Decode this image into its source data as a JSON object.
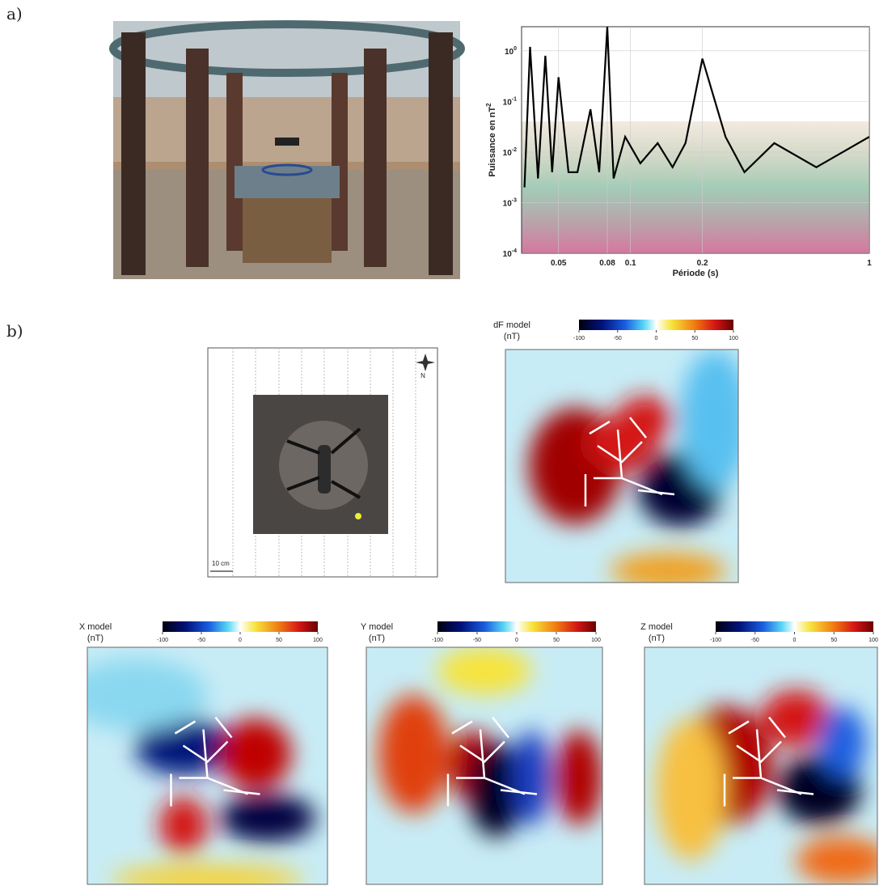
{
  "panels": [
    {
      "label": "a)"
    },
    {
      "label": "b)"
    }
  ],
  "spectrum": {
    "type": "line",
    "ylabel": "Puissance en nT",
    "ylabel_exponent": "2",
    "xlabel": "Période (s)",
    "log_x": true,
    "log_y": true,
    "grid": true,
    "xlim": [
      0.035,
      1
    ],
    "ylim": [
      0.0001,
      3
    ],
    "xticks": [
      0.05,
      0.08,
      0.1,
      0.2,
      1
    ],
    "yticks": [
      {
        "value": 1,
        "label": "10",
        "exponent": "0"
      },
      {
        "value": 0.1,
        "label": "10",
        "exponent": "-1"
      },
      {
        "value": 0.01,
        "label": "10",
        "exponent": "-2"
      },
      {
        "value": 0.001,
        "label": "10",
        "exponent": "-3"
      },
      {
        "value": 0.0001,
        "label": "10",
        "exponent": "-4"
      }
    ],
    "x": [
      0.036,
      0.038,
      0.041,
      0.044,
      0.047,
      0.05,
      0.055,
      0.06,
      0.068,
      0.074,
      0.08,
      0.085,
      0.095,
      0.11,
      0.13,
      0.15,
      0.17,
      0.2,
      0.25,
      0.3,
      0.4,
      0.6,
      1
    ],
    "series": [
      {
        "color": "#000000",
        "values": [
          0.002,
          1.2,
          0.003,
          0.8,
          0.004,
          0.3,
          0.004,
          0.004,
          0.07,
          0.004,
          3,
          0.003,
          0.02,
          0.006,
          0.015,
          0.005,
          0.015,
          0.7,
          0.02,
          0.004,
          0.015,
          0.005,
          0.02
        ]
      }
    ]
  },
  "scale_label": "10 cm",
  "north_label": "N",
  "maps": [
    {
      "title": "dF model",
      "unit": "(nT)",
      "colorbar_lim": [
        -100,
        100
      ],
      "colorbar_ticks": [
        -100,
        -50,
        0,
        50,
        100
      ]
    },
    {
      "title": "X model",
      "unit": "(nT)",
      "colorbar_lim": [
        -100,
        100
      ],
      "colorbar_ticks": [
        -100,
        -50,
        0,
        50,
        100
      ]
    },
    {
      "title": "Y model",
      "unit": "(nT)",
      "colorbar_lim": [
        -100,
        100
      ],
      "colorbar_ticks": [
        -100,
        -50,
        0,
        50,
        100
      ]
    },
    {
      "title": "Z model",
      "unit": "(nT)",
      "colorbar_lim": [
        -100,
        100
      ],
      "colorbar_ticks": [
        -100,
        -50,
        0,
        50,
        100
      ]
    }
  ]
}
